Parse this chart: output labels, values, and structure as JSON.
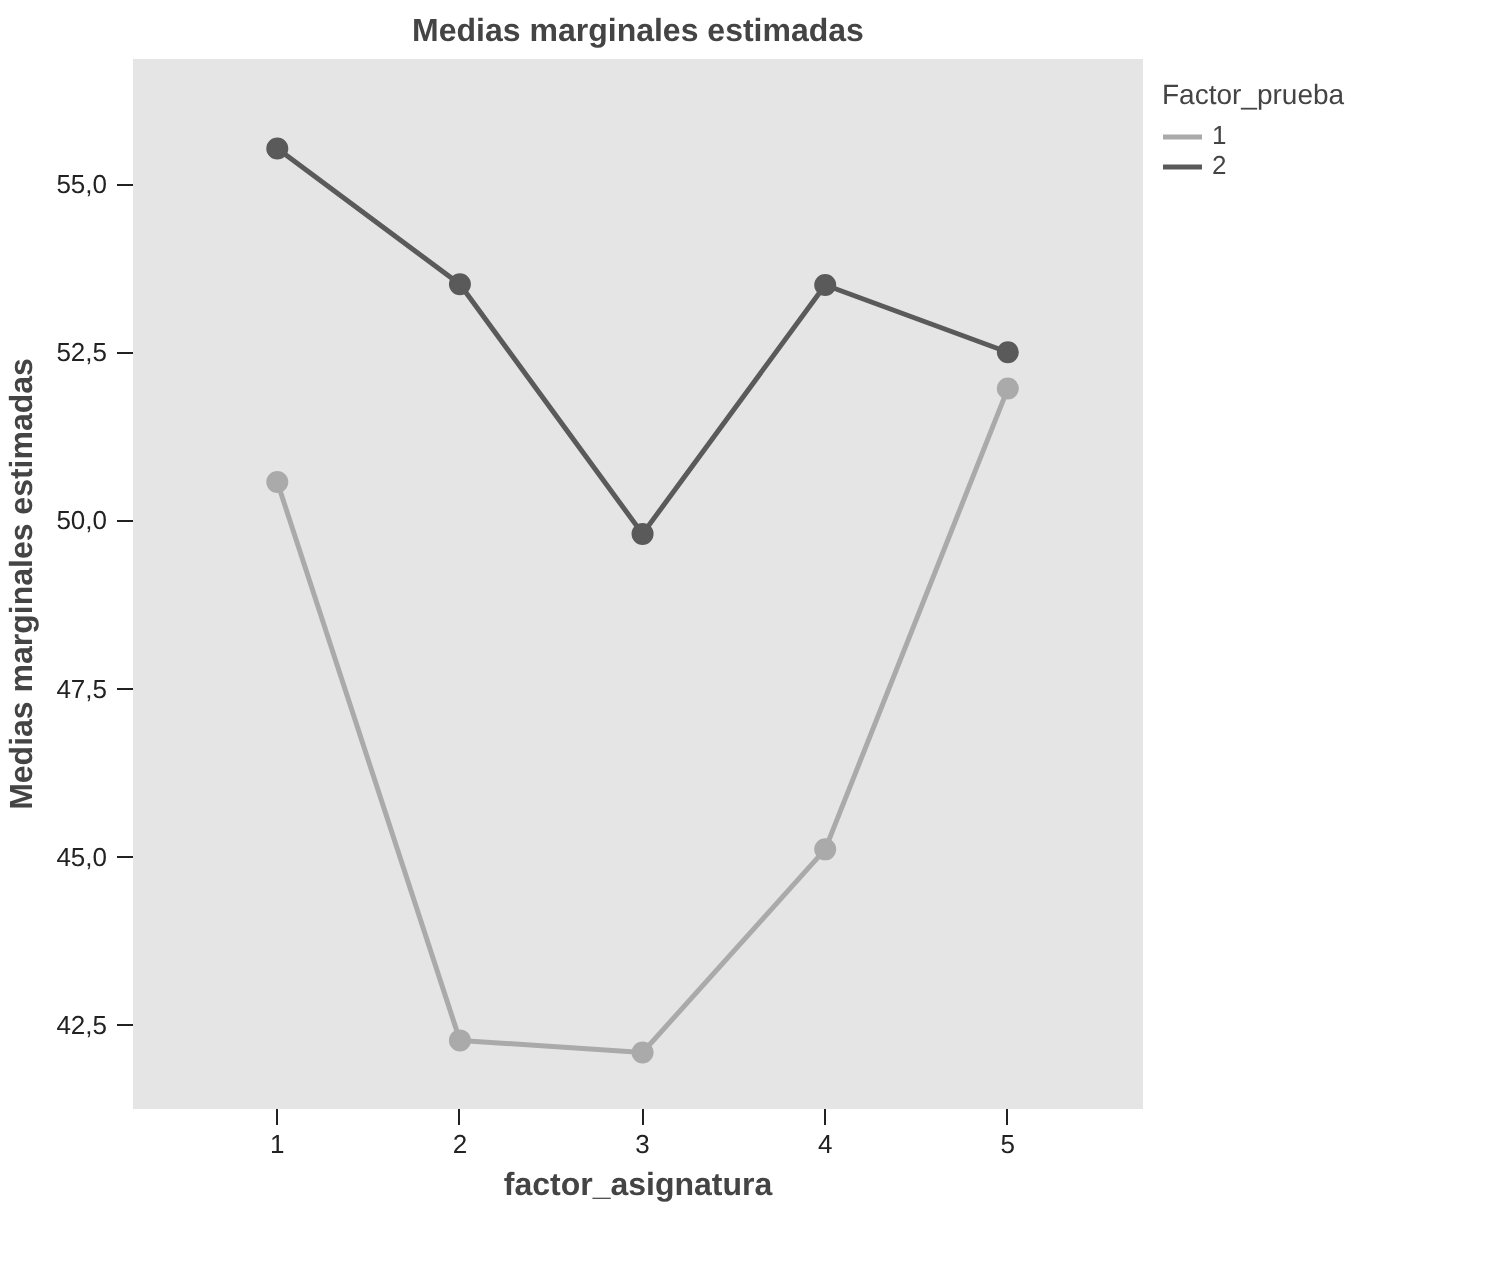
{
  "chart_data": {
    "type": "line",
    "title": "Medias marginales estimadas",
    "xlabel": "factor_asignatura",
    "ylabel": "Medias marginales estimadas",
    "legend_title": "Factor_prueba",
    "legend": "right",
    "marker": "circle",
    "line_style": "solid",
    "x": [
      1,
      2,
      3,
      4,
      5
    ],
    "xlim": [
      0.21,
      5.74
    ],
    "xticks": [
      1,
      2,
      3,
      4,
      5
    ],
    "ylim": [
      41.25,
      56.86
    ],
    "yticks": [
      {
        "value": 42.5,
        "label": "42,5"
      },
      {
        "value": 45,
        "label": "45,0"
      },
      {
        "value": 47.5,
        "label": "47,5"
      },
      {
        "value": 50,
        "label": "50,0"
      },
      {
        "value": 52.5,
        "label": "52,5"
      },
      {
        "value": 55,
        "label": "55,0"
      }
    ],
    "series": [
      {
        "name": "1",
        "color": "#aaaaaa",
        "values": [
          50.57,
          42.27,
          42.09,
          45.11,
          51.96
        ]
      },
      {
        "name": "2",
        "color": "#5a5a5a",
        "values": [
          55.53,
          53.51,
          49.8,
          53.5,
          52.5
        ]
      }
    ]
  }
}
